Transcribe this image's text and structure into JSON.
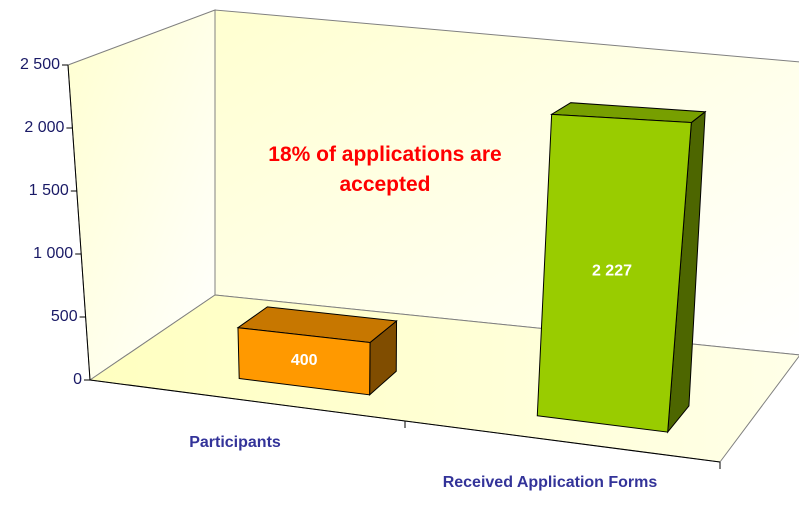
{
  "chart_data": {
    "type": "bar3d",
    "categories": [
      "Participants",
      "Received Application Forms"
    ],
    "values": [
      400,
      2227
    ],
    "value_labels": [
      "400",
      "2 227"
    ],
    "colors": [
      "#ff9900",
      "#99cc00"
    ],
    "ylim": [
      0,
      2500
    ],
    "yticks": [
      0,
      500,
      {
        "value": 1000,
        "label": "1 000"
      },
      {
        "value": 1500,
        "label": "1 500"
      },
      {
        "value": 2000,
        "label": "2 000"
      },
      {
        "value": 2500,
        "label": "2 500"
      }
    ],
    "annotation": "18% of applications are accepted"
  }
}
